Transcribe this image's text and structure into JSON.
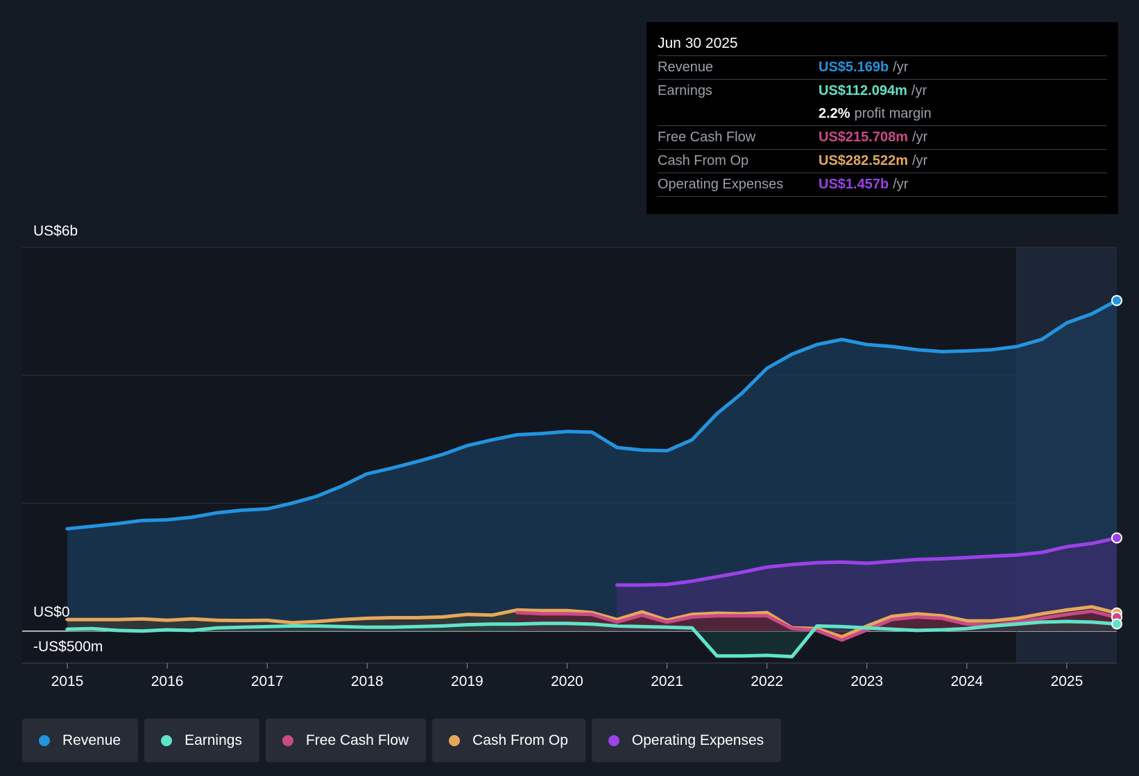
{
  "chart_data": {
    "type": "area",
    "y_axis_labels": {
      "top": "US$6b",
      "zero": "US$0",
      "bottom": "-US$500m"
    },
    "ylim": [
      -500,
      6000
    ],
    "xlim": [
      2015,
      2025.5
    ],
    "x_ticks": [
      "2015",
      "2016",
      "2017",
      "2018",
      "2019",
      "2020",
      "2021",
      "2022",
      "2023",
      "2024",
      "2025"
    ],
    "series": [
      {
        "name": "Revenue",
        "color": "#2394df",
        "unit": "US$m",
        "points": [
          [
            2015,
            1600
          ],
          [
            2015.5,
            1680
          ],
          [
            2015.75,
            1730
          ],
          [
            2016,
            1740
          ],
          [
            2016.25,
            1780
          ],
          [
            2016.5,
            1850
          ],
          [
            2016.75,
            1890
          ],
          [
            2017,
            1910
          ],
          [
            2017.25,
            2000
          ],
          [
            2017.5,
            2110
          ],
          [
            2017.75,
            2270
          ],
          [
            2018,
            2460
          ],
          [
            2018.25,
            2550
          ],
          [
            2018.5,
            2650
          ],
          [
            2018.75,
            2760
          ],
          [
            2019,
            2900
          ],
          [
            2019.25,
            2990
          ],
          [
            2019.5,
            3070
          ],
          [
            2019.75,
            3090
          ],
          [
            2020,
            3120
          ],
          [
            2020.25,
            3110
          ],
          [
            2020.5,
            2870
          ],
          [
            2020.75,
            2830
          ],
          [
            2021,
            2820
          ],
          [
            2021.25,
            2990
          ],
          [
            2021.5,
            3400
          ],
          [
            2021.75,
            3720
          ],
          [
            2022,
            4110
          ],
          [
            2022.25,
            4330
          ],
          [
            2022.5,
            4480
          ],
          [
            2022.75,
            4560
          ],
          [
            2023,
            4480
          ],
          [
            2023.25,
            4450
          ],
          [
            2023.5,
            4400
          ],
          [
            2023.75,
            4370
          ],
          [
            2024,
            4380
          ],
          [
            2024.25,
            4400
          ],
          [
            2024.5,
            4450
          ],
          [
            2024.75,
            4560
          ],
          [
            2025,
            4820
          ],
          [
            2025.25,
            4960
          ],
          [
            2025.5,
            5169
          ]
        ]
      },
      {
        "name": "Earnings",
        "color": "#61e3c9",
        "unit": "US$m",
        "points": [
          [
            2015,
            30
          ],
          [
            2015.25,
            40
          ],
          [
            2015.5,
            10
          ],
          [
            2015.75,
            0
          ],
          [
            2016,
            20
          ],
          [
            2016.25,
            10
          ],
          [
            2016.5,
            50
          ],
          [
            2016.75,
            60
          ],
          [
            2017,
            70
          ],
          [
            2017.25,
            80
          ],
          [
            2017.5,
            80
          ],
          [
            2017.75,
            70
          ],
          [
            2018,
            60
          ],
          [
            2018.25,
            60
          ],
          [
            2018.5,
            70
          ],
          [
            2018.75,
            80
          ],
          [
            2019,
            100
          ],
          [
            2019.25,
            110
          ],
          [
            2019.5,
            110
          ],
          [
            2019.75,
            120
          ],
          [
            2020,
            120
          ],
          [
            2020.25,
            110
          ],
          [
            2020.5,
            80
          ],
          [
            2020.75,
            70
          ],
          [
            2021,
            60
          ],
          [
            2021.25,
            50
          ],
          [
            2021.5,
            -390
          ],
          [
            2021.75,
            -390
          ],
          [
            2022,
            -380
          ],
          [
            2022.25,
            -400
          ],
          [
            2022.5,
            80
          ],
          [
            2022.75,
            70
          ],
          [
            2023,
            50
          ],
          [
            2023.25,
            30
          ],
          [
            2023.5,
            10
          ],
          [
            2023.75,
            20
          ],
          [
            2024,
            40
          ],
          [
            2024.25,
            80
          ],
          [
            2024.5,
            110
          ],
          [
            2024.75,
            140
          ],
          [
            2025,
            150
          ],
          [
            2025.25,
            140
          ],
          [
            2025.5,
            112.094
          ]
        ]
      },
      {
        "name": "Free Cash Flow",
        "color": "#ca4a86",
        "unit": "US$m",
        "points": [
          [
            2019.5,
            290
          ],
          [
            2019.75,
            270
          ],
          [
            2020,
            270
          ],
          [
            2020.25,
            260
          ],
          [
            2020.5,
            140
          ],
          [
            2020.75,
            250
          ],
          [
            2021,
            140
          ],
          [
            2021.25,
            220
          ],
          [
            2021.5,
            240
          ],
          [
            2021.75,
            240
          ],
          [
            2022,
            240
          ],
          [
            2022.25,
            40
          ],
          [
            2022.5,
            10
          ],
          [
            2022.75,
            -140
          ],
          [
            2023,
            20
          ],
          [
            2023.25,
            180
          ],
          [
            2023.5,
            220
          ],
          [
            2023.75,
            200
          ],
          [
            2024,
            110
          ],
          [
            2024.25,
            90
          ],
          [
            2024.5,
            140
          ],
          [
            2024.75,
            200
          ],
          [
            2025,
            260
          ],
          [
            2025.25,
            310
          ],
          [
            2025.5,
            215.708
          ]
        ]
      },
      {
        "name": "Cash From Op",
        "color": "#e5a85a",
        "unit": "US$m",
        "points": [
          [
            2015,
            180
          ],
          [
            2015.5,
            180
          ],
          [
            2015.75,
            190
          ],
          [
            2016,
            170
          ],
          [
            2016.25,
            190
          ],
          [
            2016.5,
            170
          ],
          [
            2016.75,
            165
          ],
          [
            2017,
            170
          ],
          [
            2017.25,
            130
          ],
          [
            2017.5,
            150
          ],
          [
            2017.75,
            180
          ],
          [
            2018,
            200
          ],
          [
            2018.25,
            210
          ],
          [
            2018.5,
            210
          ],
          [
            2018.75,
            220
          ],
          [
            2019,
            260
          ],
          [
            2019.25,
            250
          ],
          [
            2019.5,
            330
          ],
          [
            2019.75,
            320
          ],
          [
            2020,
            320
          ],
          [
            2020.25,
            290
          ],
          [
            2020.5,
            180
          ],
          [
            2020.75,
            300
          ],
          [
            2021,
            170
          ],
          [
            2021.25,
            260
          ],
          [
            2021.5,
            280
          ],
          [
            2021.75,
            270
          ],
          [
            2022,
            290
          ],
          [
            2022.25,
            50
          ],
          [
            2022.5,
            40
          ],
          [
            2022.75,
            -90
          ],
          [
            2023,
            80
          ],
          [
            2023.25,
            230
          ],
          [
            2023.5,
            270
          ],
          [
            2023.75,
            240
          ],
          [
            2024,
            160
          ],
          [
            2024.25,
            160
          ],
          [
            2024.5,
            200
          ],
          [
            2024.75,
            270
          ],
          [
            2025,
            330
          ],
          [
            2025.25,
            380
          ],
          [
            2025.5,
            282.522
          ]
        ]
      },
      {
        "name": "Operating Expenses",
        "color": "#9b42e8",
        "unit": "US$m",
        "points": [
          [
            2020.5,
            720
          ],
          [
            2020.75,
            720
          ],
          [
            2021,
            730
          ],
          [
            2021.25,
            780
          ],
          [
            2021.5,
            850
          ],
          [
            2021.75,
            920
          ],
          [
            2022,
            1000
          ],
          [
            2022.25,
            1040
          ],
          [
            2022.5,
            1070
          ],
          [
            2022.75,
            1080
          ],
          [
            2023,
            1060
          ],
          [
            2023.25,
            1090
          ],
          [
            2023.5,
            1120
          ],
          [
            2023.75,
            1130
          ],
          [
            2024,
            1150
          ],
          [
            2024.25,
            1170
          ],
          [
            2024.5,
            1190
          ],
          [
            2024.75,
            1230
          ],
          [
            2025,
            1320
          ],
          [
            2025.25,
            1370
          ],
          [
            2025.5,
            1457
          ]
        ]
      }
    ],
    "forecast_shade_from": 2024.5
  },
  "tooltip": {
    "date": "Jun 30 2025",
    "rows": [
      {
        "label": "Revenue",
        "value": "US$5.169b",
        "unit": "/yr",
        "color": "#2394df"
      },
      {
        "label": "Earnings",
        "value": "US$112.094m",
        "unit": "/yr",
        "color": "#61e3c9"
      },
      {
        "label": "",
        "value": "2.2%",
        "unit": "profit margin",
        "color": "#ffffff"
      },
      {
        "label": "Free Cash Flow",
        "value": "US$215.708m",
        "unit": "/yr",
        "color": "#ca4a86"
      },
      {
        "label": "Cash From Op",
        "value": "US$282.522m",
        "unit": "/yr",
        "color": "#e5a85a"
      },
      {
        "label": "Operating Expenses",
        "value": "US$1.457b",
        "unit": "/yr",
        "color": "#9b42e8"
      }
    ]
  },
  "legend": [
    {
      "label": "Revenue",
      "color": "#2394df"
    },
    {
      "label": "Earnings",
      "color": "#61e3c9"
    },
    {
      "label": "Free Cash Flow",
      "color": "#ca4a86"
    },
    {
      "label": "Cash From Op",
      "color": "#e5a85a"
    },
    {
      "label": "Operating Expenses",
      "color": "#9b42e8"
    }
  ]
}
